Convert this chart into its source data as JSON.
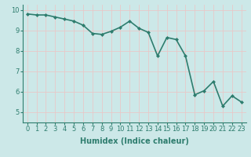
{
  "x": [
    0,
    1,
    2,
    3,
    4,
    5,
    6,
    7,
    8,
    9,
    10,
    11,
    12,
    13,
    14,
    15,
    16,
    17,
    18,
    19,
    20,
    21,
    22,
    23
  ],
  "y": [
    9.8,
    9.75,
    9.75,
    9.65,
    9.55,
    9.45,
    9.25,
    8.85,
    8.8,
    8.95,
    9.15,
    9.45,
    9.1,
    8.9,
    7.75,
    8.65,
    8.55,
    7.75,
    5.85,
    6.05,
    6.5,
    5.3,
    5.8,
    5.5
  ],
  "line_color": "#2e7d6e",
  "marker": "D",
  "marker_size": 2.0,
  "bg_color": "#cce8e8",
  "grid_color": "#e8c8c8",
  "xlabel": "Humidex (Indice chaleur)",
  "ylim": [
    4.5,
    10.25
  ],
  "xlim": [
    -0.5,
    23.5
  ],
  "yticks": [
    5,
    6,
    7,
    8,
    9,
    10
  ],
  "xticks": [
    0,
    1,
    2,
    3,
    4,
    5,
    6,
    7,
    8,
    9,
    10,
    11,
    12,
    13,
    14,
    15,
    16,
    17,
    18,
    19,
    20,
    21,
    22,
    23
  ],
  "xtick_labels": [
    "0",
    "1",
    "2",
    "3",
    "4",
    "5",
    "6",
    "7",
    "8",
    "9",
    "10",
    "11",
    "12",
    "13",
    "14",
    "15",
    "16",
    "17",
    "18",
    "19",
    "20",
    "21",
    "22",
    "23"
  ],
  "line_width": 1.2,
  "xlabel_fontsize": 7,
  "tick_fontsize": 6,
  "spine_color": "#2e7d6e"
}
